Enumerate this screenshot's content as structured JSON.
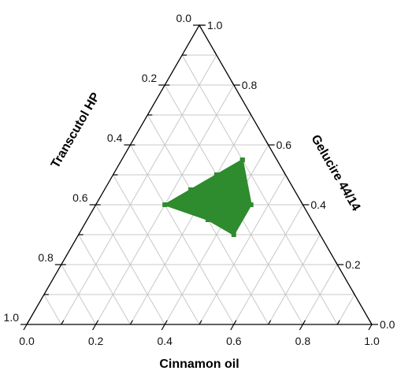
{
  "chart_data": {
    "type": "ternary",
    "axes": {
      "bottom": {
        "label": "Cinnamon oil",
        "ticks": [
          "0.0",
          "0.2",
          "0.4",
          "0.6",
          "0.8",
          "1.0"
        ]
      },
      "left": {
        "label": "Transcutol HP",
        "ticks": [
          "0.0",
          "0.2",
          "0.4",
          "0.6",
          "0.8",
          "1.0"
        ]
      },
      "right": {
        "label": "Gelucire 44/14",
        "ticks": [
          "0.0",
          "0.2",
          "0.4",
          "0.6",
          "0.8",
          "1.0"
        ]
      }
    },
    "grid": true,
    "grid_step": 0.1,
    "region": {
      "color": "#2e8b2e",
      "points": [
        {
          "cinnamon_oil": 0.35,
          "transcutol_hp": 0.1,
          "gelucire": 0.55
        },
        {
          "cinnamon_oil": 0.3,
          "transcutol_hp": 0.2,
          "gelucire": 0.5
        },
        {
          "cinnamon_oil": 0.25,
          "transcutol_hp": 0.3,
          "gelucire": 0.45
        },
        {
          "cinnamon_oil": 0.2,
          "transcutol_hp": 0.4,
          "gelucire": 0.4
        },
        {
          "cinnamon_oil": 0.35,
          "transcutol_hp": 0.3,
          "gelucire": 0.35
        },
        {
          "cinnamon_oil": 0.45,
          "transcutol_hp": 0.25,
          "gelucire": 0.3
        },
        {
          "cinnamon_oil": 0.45,
          "transcutol_hp": 0.15,
          "gelucire": 0.4
        },
        {
          "cinnamon_oil": 0.35,
          "transcutol_hp": 0.1,
          "gelucire": 0.55
        }
      ]
    },
    "colors": {
      "grid": "#c8c8c8",
      "frame": "#000000",
      "region": "#2e8b2e"
    }
  }
}
